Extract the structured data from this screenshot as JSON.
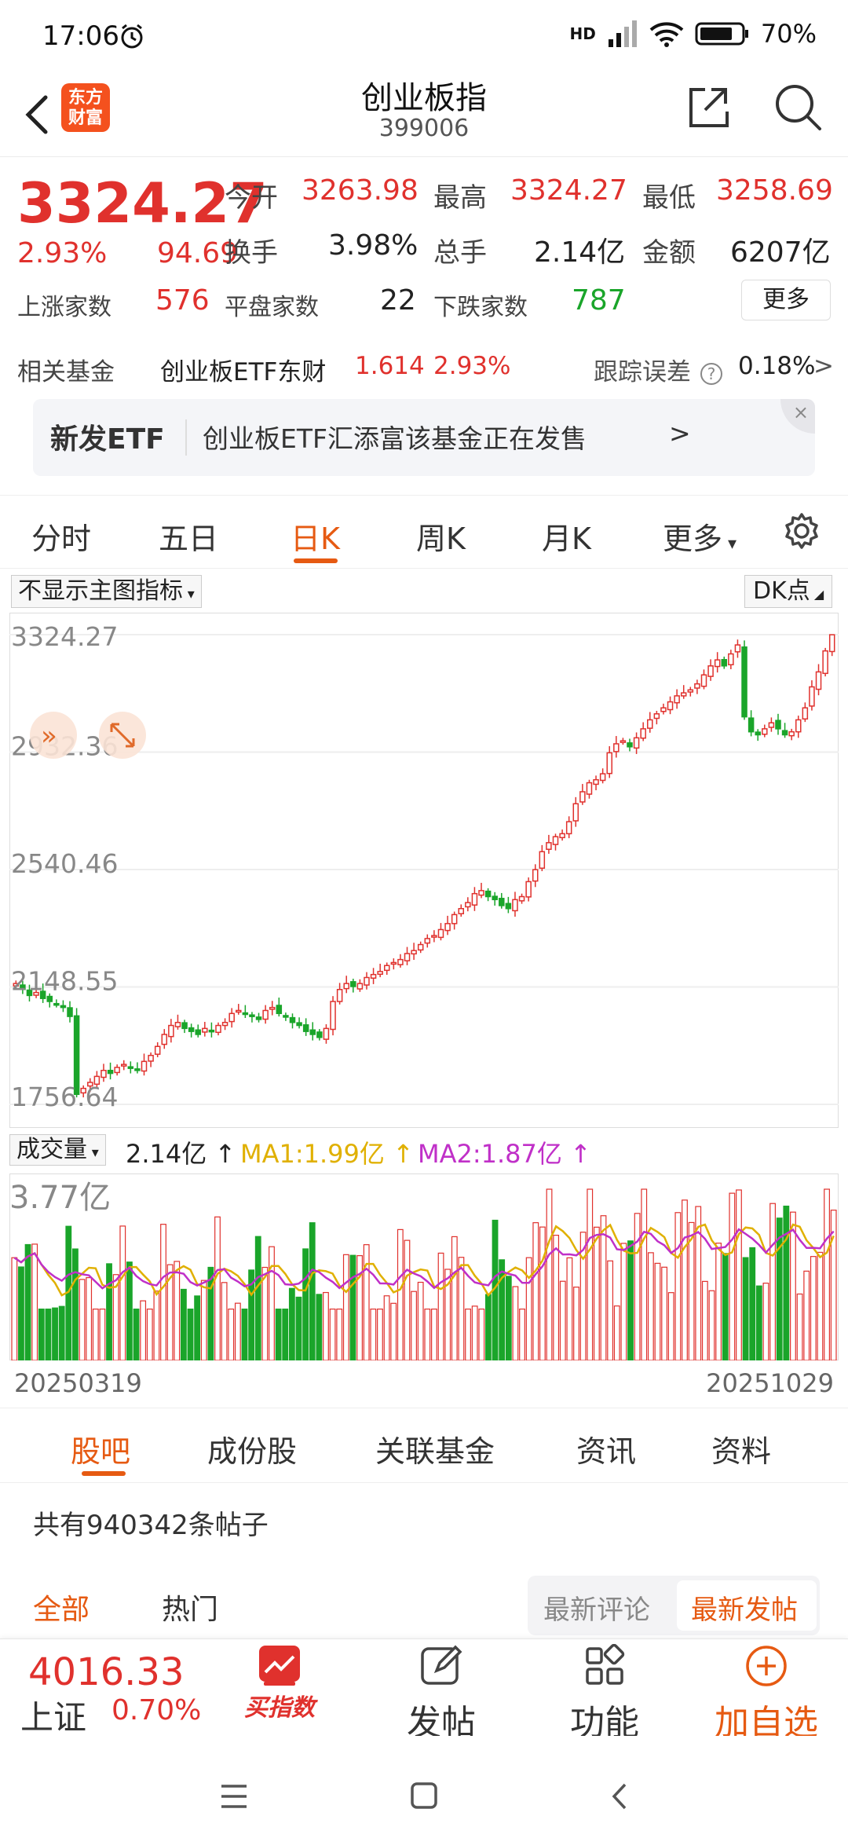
{
  "status": {
    "time": "17:06",
    "battery": "70%",
    "network": "HD"
  },
  "header": {
    "title": "创业板指",
    "code": "399006",
    "logo_text": "东方财富"
  },
  "quote": {
    "price": "3324.27",
    "change_pct": "2.93%",
    "change": "94.69",
    "open_label": "今开",
    "open": "3263.98",
    "high_label": "最高",
    "high": "3324.27",
    "low_label": "最低",
    "low": "3258.69",
    "turnover_label": "换手",
    "turnover": "3.98%",
    "volume_label": "总手",
    "volume": "2.14亿",
    "amount_label": "金额",
    "amount": "6207亿",
    "up_label": "上涨家数",
    "up": "576",
    "flat_label": "平盘家数",
    "flat": "22",
    "down_label": "下跌家数",
    "down": "787",
    "more_label": "更多"
  },
  "fund": {
    "label": "相关基金",
    "name": "创业板ETF东财",
    "price": "1.614",
    "pct": "2.93%",
    "tracking_label": "跟踪误差",
    "tracking": "0.18%",
    "arrow": ">"
  },
  "banner": {
    "tag": "新发ETF",
    "text": "创业板ETF汇添富该基金正在发售",
    "arrow": ">",
    "close": "×"
  },
  "ktabs": [
    "分时",
    "五日",
    "日K",
    "周K",
    "月K",
    "更多"
  ],
  "chart_controls": {
    "indicator": "不显示主图指标",
    "dk": "DK点"
  },
  "chart_data": {
    "type": "candlestick",
    "y_ticks": [
      "3324.27",
      "2932.36",
      "2540.46",
      "2148.55",
      "1756.64"
    ],
    "ylim": [
      1756.64,
      3324.27
    ],
    "x_start": "20250319",
    "x_end": "20251029",
    "closes": [
      2160,
      2140,
      2120,
      2130,
      2110,
      2100,
      2090,
      2080,
      2050,
      1790,
      1810,
      1830,
      1850,
      1870,
      1860,
      1880,
      1890,
      1880,
      1870,
      1900,
      1920,
      1950,
      1990,
      2020,
      2030,
      2010,
      2000,
      1990,
      2010,
      2000,
      2020,
      2030,
      2060,
      2070,
      2060,
      2050,
      2040,
      2070,
      2080,
      2060,
      2050,
      2030,
      2020,
      2000,
      1990,
      1980,
      2010,
      2100,
      2140,
      2160,
      2150,
      2160,
      2180,
      2190,
      2200,
      2220,
      2230,
      2240,
      2260,
      2270,
      2290,
      2310,
      2320,
      2340,
      2360,
      2390,
      2410,
      2430,
      2460,
      2470,
      2450,
      2440,
      2420,
      2410,
      2440,
      2450,
      2500,
      2540,
      2600,
      2630,
      2650,
      2660,
      2700,
      2760,
      2800,
      2830,
      2840,
      2860,
      2930,
      2960,
      2970,
      2950,
      2980,
      3010,
      3040,
      3060,
      3080,
      3100,
      3120,
      3130,
      3140,
      3160,
      3190,
      3220,
      3240,
      3220,
      3260,
      3290,
      3050,
      3000,
      2990,
      3010,
      3030,
      3010,
      2990,
      3000,
      3040,
      3080,
      3150,
      3200,
      3270,
      3324
    ],
    "volume": {
      "label": "成交量",
      "value": "2.14亿",
      "ma1_label": "MA1:1.99亿",
      "ma2_label": "MA2:1.87亿",
      "max_label": "3.77亿"
    }
  },
  "btabs": [
    "股吧",
    "成份股",
    "关联基金",
    "资讯",
    "资料"
  ],
  "posts": "共有940342条帖子",
  "filters": {
    "all": "全部",
    "hot": "热门",
    "latest_comment": "最新评论",
    "latest_post": "最新发帖"
  },
  "bottombar": {
    "sh_price": "4016.33",
    "sh_name": "上证",
    "sh_chg": "0.70%",
    "buy": "买指数",
    "post": "发帖",
    "func": "功能",
    "add": "加自选"
  }
}
